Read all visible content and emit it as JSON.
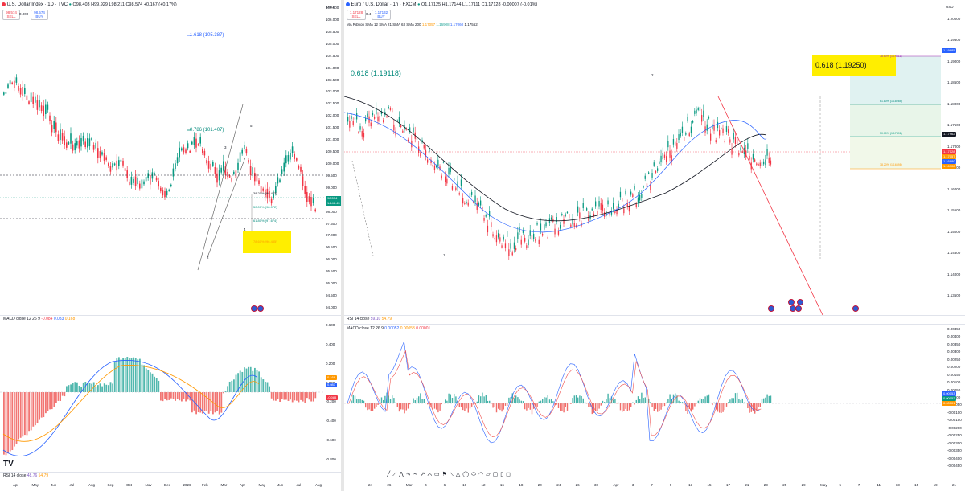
{
  "left": {
    "title": "U.S. Dollar Index · 1D · TVC",
    "ohlc": "O98.403 H99.929 L98.211 C98.574 +0.167 (+0.17%)",
    "sell_price": "98.574",
    "sell_label": "SELL",
    "spread": "0.000",
    "buy_price": "98.574",
    "buy_label": "BUY",
    "axis_unit": "USD",
    "price_axis": [
      "106.500",
      "106.000",
      "105.500",
      "105.000",
      "104.500",
      "104.000",
      "103.500",
      "103.000",
      "102.500",
      "102.000",
      "101.500",
      "101.000",
      "100.500",
      "100.000",
      "99.500",
      "99.000",
      "98.500",
      "98.000",
      "97.500",
      "97.000",
      "96.500",
      "96.000",
      "95.500",
      "95.000",
      "94.500",
      "94.000"
    ],
    "time_axis": [
      "Apr",
      "May",
      "Jun",
      "Jul",
      "Aug",
      "Sep",
      "Oct",
      "Nov",
      "Dec",
      "2026",
      "Feb",
      "Mar",
      "Apr",
      "May",
      "Jun",
      "Jul",
      "Aug"
    ],
    "fib_1618": "1.618 (105.387)",
    "fib_0786": "0.786 (101.407)",
    "fib_382": "38.20% (98.473)",
    "fib_50": "50.00% (98.072)",
    "fib_618": "61.80% (97.674)",
    "fib_786": "78.60% (96.435)",
    "price_tag": "98.574",
    "price_tag_time": "14:48:45",
    "wave_labels": [
      "5",
      "3",
      "4",
      "2"
    ],
    "macd_title": "MACD close 12 26 9",
    "macd_vals": [
      "-0.084",
      "0.083",
      "0.168"
    ],
    "macd_axis": [
      "0.600",
      "0.400",
      "0.200",
      "0.000",
      "-0.200",
      "-0.400",
      "-0.600",
      "-0.800"
    ],
    "macd_tags": [
      "0.168",
      "0.083",
      "-0.084"
    ],
    "rsi_title": "RSI 14 close",
    "rsi_vals": [
      "48.76",
      "54.79"
    ]
  },
  "right": {
    "title": "Euro / U.S. Dollar · 1h · FXCM",
    "ohlc": "O1.17125 H1.17144 L1.17111 C1.17128 -0.00007 (-0.01%)",
    "sell_price": "1.17128",
    "sell_label": "SELL",
    "spread": "0.4",
    "buy_price": "1.17132",
    "buy_label": "BUY",
    "ma_title": "MA Ribbon SMA 12 SMA 21 SMA 63 SMA 200",
    "ma_vals": [
      "1.17057",
      "1.16908",
      "1.17060",
      "1.17562"
    ],
    "axis_unit": "USD",
    "price_axis": [
      "1.20000",
      "1.19500",
      "1.19000",
      "1.18500",
      "1.18000",
      "1.17500",
      "1.17000",
      "1.16500",
      "1.16000",
      "1.15500",
      "1.15000",
      "1.14500",
      "1.14000",
      "1.13500"
    ],
    "time_axis": [
      "24",
      "26",
      "Mar",
      "4",
      "6",
      "10",
      "12",
      "16",
      "18",
      "20",
      "24",
      "26",
      "30",
      "Apr",
      "3",
      "7",
      "9",
      "13",
      "15",
      "17",
      "21",
      "23",
      "25",
      "29",
      "May",
      "5",
      "7",
      "11",
      "13",
      "15",
      "19",
      "21"
    ],
    "fib_0618_left": "0.618 (1.19118)",
    "fib_0618_target": "0.618 (1.19250)",
    "fib_786": "78.60% (1.19411)",
    "fib_618": "61.80% (1.18285)",
    "fib_50": "50.00% (1.17491)",
    "fib_382": "38.20% (1.16698)",
    "axis_tags": [
      "1.19885",
      "1.17962",
      "1.17128",
      "1.17057",
      "1.16908",
      "1.16980"
    ],
    "wave_labels": [
      "2",
      "1"
    ],
    "rsi_title": "RSI 14 close",
    "rsi_vals": [
      "59.10",
      "54.79"
    ],
    "macd_title": "MACD close 12 26 9",
    "macd_vals": [
      "0.00052",
      "0.00053",
      "0.00001"
    ],
    "macd_axis": [
      "0.00450",
      "0.00400",
      "0.00350",
      "0.00300",
      "0.00250",
      "0.00200",
      "0.00150",
      "0.00100",
      "0.00050",
      "0.00000",
      "-0.00050",
      "-0.00100",
      "-0.00150",
      "-0.00200",
      "-0.00250",
      "-0.00300",
      "-0.00350",
      "-0.00400",
      "-0.00450"
    ],
    "macd_tags": [
      "0.00053",
      "0.00052",
      "0.00001"
    ]
  },
  "colors": {
    "up": "#089981",
    "down": "#f23645",
    "blue": "#2962ff",
    "orange": "#ff9800",
    "highlight": "#ffee00"
  }
}
